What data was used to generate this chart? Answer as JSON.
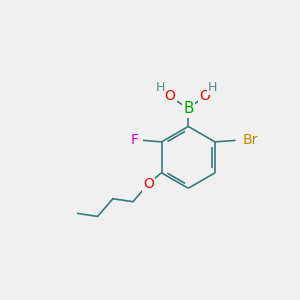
{
  "background_color": "#f0f0f0",
  "bond_color": "#3a7a7a",
  "bond_width": 1.2,
  "atom_colors": {
    "B": "#00aa00",
    "O": "#ff0000",
    "H": "#5a8a8a",
    "F": "#dd00cc",
    "Br": "#cc8800",
    "C": "#3a7a7a"
  },
  "font_size_main": 10,
  "font_size_small": 9,
  "font_size_br": 10
}
